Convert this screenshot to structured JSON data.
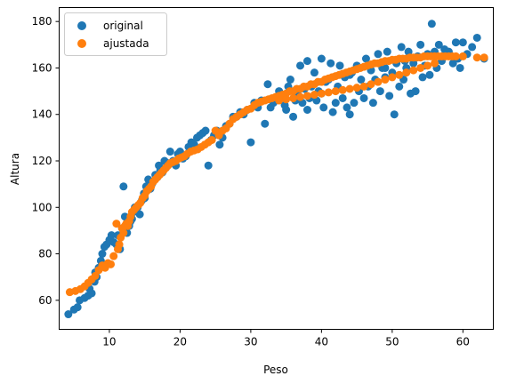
{
  "chart_data": {
    "type": "scatter",
    "title": "",
    "xlabel": "Peso",
    "ylabel": "Altura",
    "xlim": [
      2.9,
      64.3
    ],
    "ylim": [
      47.5,
      186
    ],
    "xticks": [
      10,
      20,
      30,
      40,
      50,
      60
    ],
    "yticks": [
      60,
      80,
      100,
      120,
      140,
      160,
      180
    ],
    "grid": false,
    "legend_position": "upper-left",
    "series": [
      {
        "name": "original",
        "color": "#1f77b4",
        "points": [
          [
            4.2,
            54
          ],
          [
            5,
            56
          ],
          [
            5.5,
            57
          ],
          [
            5.8,
            60
          ],
          [
            6.5,
            61
          ],
          [
            7,
            62
          ],
          [
            7.2,
            65
          ],
          [
            7.5,
            63
          ],
          [
            7.9,
            68
          ],
          [
            8,
            72
          ],
          [
            8.2,
            70
          ],
          [
            8.5,
            74
          ],
          [
            8.8,
            77
          ],
          [
            9,
            80
          ],
          [
            9.3,
            83
          ],
          [
            9.6,
            84
          ],
          [
            10,
            86
          ],
          [
            10.3,
            88
          ],
          [
            10.6,
            85
          ],
          [
            11,
            84
          ],
          [
            11.2,
            88
          ],
          [
            11.5,
            82
          ],
          [
            11.8,
            91
          ],
          [
            12,
            109
          ],
          [
            12.2,
            96
          ],
          [
            12.5,
            89
          ],
          [
            12.8,
            92
          ],
          [
            13,
            94
          ],
          [
            13.2,
            95
          ],
          [
            13.4,
            98
          ],
          [
            13.6,
            100
          ],
          [
            14,
            100
          ],
          [
            14.3,
            97
          ],
          [
            14.6,
            103
          ],
          [
            14.9,
            106
          ],
          [
            15,
            104
          ],
          [
            15.2,
            109
          ],
          [
            15.5,
            112
          ],
          [
            15.8,
            108
          ],
          [
            16,
            110
          ],
          [
            16.2,
            111
          ],
          [
            16.5,
            114
          ],
          [
            16.8,
            113
          ],
          [
            17,
            118
          ],
          [
            17.2,
            116
          ],
          [
            17.5,
            115
          ],
          [
            17.8,
            120
          ],
          [
            18,
            117
          ],
          [
            18.3,
            119
          ],
          [
            18.6,
            124
          ],
          [
            19,
            120
          ],
          [
            19.4,
            118
          ],
          [
            19.7,
            123
          ],
          [
            20,
            124
          ],
          [
            20.4,
            121
          ],
          [
            20.8,
            122
          ],
          [
            21.2,
            126
          ],
          [
            21.6,
            128
          ],
          [
            22,
            127
          ],
          [
            22.4,
            130
          ],
          [
            22.8,
            131
          ],
          [
            23.2,
            132
          ],
          [
            23.6,
            133
          ],
          [
            24,
            118
          ],
          [
            24.4,
            129
          ],
          [
            24.8,
            131
          ],
          [
            25.2,
            133
          ],
          [
            25.6,
            127
          ],
          [
            26,
            130
          ],
          [
            26.5,
            135
          ],
          [
            27,
            136
          ],
          [
            27.5,
            139
          ],
          [
            28,
            139
          ],
          [
            28.5,
            141
          ],
          [
            29,
            140
          ],
          [
            29.5,
            142
          ],
          [
            30,
            128
          ],
          [
            30.5,
            145
          ],
          [
            31,
            143
          ],
          [
            31.5,
            146
          ],
          [
            32,
            136
          ],
          [
            32.4,
            153
          ],
          [
            32.8,
            143
          ],
          [
            33.2,
            145
          ],
          [
            33.6,
            147
          ],
          [
            34,
            150
          ],
          [
            34.4,
            148
          ],
          [
            34.8,
            144
          ],
          [
            35,
            142
          ],
          [
            35.3,
            152
          ],
          [
            35.6,
            155
          ],
          [
            36,
            139
          ],
          [
            36.3,
            146
          ],
          [
            36.6,
            149
          ],
          [
            37,
            161
          ],
          [
            37.3,
            145
          ],
          [
            37.6,
            151
          ],
          [
            38,
            142
          ],
          [
            38.3,
            147
          ],
          [
            38.6,
            152
          ],
          [
            39,
            158
          ],
          [
            39.3,
            146
          ],
          [
            39.6,
            150
          ],
          [
            40,
            149
          ],
          [
            40.3,
            143
          ],
          [
            40.6,
            154
          ],
          [
            41,
            155
          ],
          [
            41.3,
            162
          ],
          [
            41.6,
            141
          ],
          [
            42,
            145
          ],
          [
            42.3,
            152
          ],
          [
            42.6,
            161
          ],
          [
            43,
            147
          ],
          [
            43.3,
            156
          ],
          [
            43.6,
            143
          ],
          [
            44,
            140
          ],
          [
            44.3,
            158
          ],
          [
            44.6,
            145
          ],
          [
            45,
            161
          ],
          [
            45.3,
            150
          ],
          [
            45.6,
            155
          ],
          [
            46,
            147
          ],
          [
            46.3,
            164
          ],
          [
            46.6,
            152
          ],
          [
            47,
            159
          ],
          [
            47.3,
            145
          ],
          [
            47.6,
            155
          ],
          [
            48,
            166
          ],
          [
            48.3,
            150
          ],
          [
            48.6,
            160
          ],
          [
            49,
            156
          ],
          [
            49.3,
            167
          ],
          [
            49.6,
            148
          ],
          [
            50,
            158
          ],
          [
            50.3,
            140
          ],
          [
            50.6,
            162
          ],
          [
            51,
            152
          ],
          [
            51.3,
            169
          ],
          [
            51.6,
            155
          ],
          [
            52,
            160
          ],
          [
            52.3,
            167
          ],
          [
            52.6,
            149
          ],
          [
            53,
            162
          ],
          [
            53.3,
            150
          ],
          [
            53.6,
            165
          ],
          [
            54,
            170
          ],
          [
            54.3,
            156
          ],
          [
            54.6,
            161
          ],
          [
            55,
            166
          ],
          [
            55.3,
            157
          ],
          [
            55.6,
            179
          ],
          [
            56,
            167
          ],
          [
            56.3,
            160
          ],
          [
            56.6,
            170
          ],
          [
            57,
            163
          ],
          [
            57.4,
            168
          ],
          [
            58,
            167
          ],
          [
            58.6,
            162
          ],
          [
            59,
            171
          ],
          [
            59.3,
            164
          ],
          [
            59.6,
            160
          ],
          [
            60,
            171
          ],
          [
            60.6,
            166
          ],
          [
            61.3,
            169
          ],
          [
            62,
            173
          ],
          [
            63,
            164
          ],
          [
            38,
            163
          ],
          [
            40,
            164
          ],
          [
            44,
            157
          ],
          [
            49,
            160
          ],
          [
            51.8,
            163
          ]
        ]
      },
      {
        "name": "ajustada",
        "color": "#ff7f0e",
        "points": [
          [
            4.4,
            63.5
          ],
          [
            5.2,
            64
          ],
          [
            5.9,
            64.8
          ],
          [
            6.5,
            66
          ],
          [
            7,
            67.5
          ],
          [
            7.5,
            69
          ],
          [
            8,
            70.5
          ],
          [
            8.5,
            73
          ],
          [
            9,
            75
          ],
          [
            9.4,
            74
          ],
          [
            9.8,
            76
          ],
          [
            10.2,
            75.5
          ],
          [
            10.6,
            79
          ],
          [
            11,
            93
          ],
          [
            11.2,
            82
          ],
          [
            11.4,
            84
          ],
          [
            11.6,
            87
          ],
          [
            11.8,
            91
          ],
          [
            12,
            89
          ],
          [
            12.2,
            92
          ],
          [
            12.4,
            93
          ],
          [
            12.6,
            92
          ],
          [
            12.8,
            94
          ],
          [
            13,
            96
          ],
          [
            13.2,
            98
          ],
          [
            13.5,
            99
          ],
          [
            13.8,
            100
          ],
          [
            14.1,
            101
          ],
          [
            14.4,
            102
          ],
          [
            14.7,
            104
          ],
          [
            15,
            105
          ],
          [
            15.3,
            107
          ],
          [
            15.6,
            108
          ],
          [
            15.9,
            109
          ],
          [
            16.2,
            111
          ],
          [
            16.5,
            112
          ],
          [
            16.8,
            113
          ],
          [
            17.1,
            114
          ],
          [
            17.4,
            115
          ],
          [
            17.7,
            116
          ],
          [
            18,
            117
          ],
          [
            18.3,
            118
          ],
          [
            18.6,
            119
          ],
          [
            19,
            119.5
          ],
          [
            19.4,
            120
          ],
          [
            19.8,
            121
          ],
          [
            20.2,
            121.5
          ],
          [
            20.6,
            122
          ],
          [
            21,
            123
          ],
          [
            21.5,
            124
          ],
          [
            22,
            124.5
          ],
          [
            22.5,
            125
          ],
          [
            23,
            126
          ],
          [
            23.5,
            127
          ],
          [
            24,
            128
          ],
          [
            24.5,
            129
          ],
          [
            25,
            133
          ],
          [
            25.5,
            131
          ],
          [
            26,
            133
          ],
          [
            26.5,
            134
          ],
          [
            27,
            136
          ],
          [
            27.5,
            138
          ],
          [
            28,
            139
          ],
          [
            28.5,
            140
          ],
          [
            29,
            141
          ],
          [
            29.5,
            142
          ],
          [
            30,
            142.5
          ],
          [
            30.5,
            144
          ],
          [
            31,
            145
          ],
          [
            31.5,
            145.5
          ],
          [
            32,
            146
          ],
          [
            32.5,
            146.5
          ],
          [
            33,
            147
          ],
          [
            33.5,
            147.5
          ],
          [
            34,
            148
          ],
          [
            34.5,
            148.5
          ],
          [
            35,
            149
          ],
          [
            35.5,
            150
          ],
          [
            36,
            150
          ],
          [
            36.5,
            151
          ],
          [
            37,
            151
          ],
          [
            37.5,
            152
          ],
          [
            38,
            152
          ],
          [
            38.5,
            153
          ],
          [
            39,
            153
          ],
          [
            39.5,
            154
          ],
          [
            40,
            154
          ],
          [
            40.5,
            155
          ],
          [
            41,
            155.5
          ],
          [
            41.5,
            156
          ],
          [
            42,
            156.5
          ],
          [
            42.5,
            157
          ],
          [
            43,
            157.5
          ],
          [
            43.5,
            158
          ],
          [
            44,
            158.5
          ],
          [
            44.5,
            159
          ],
          [
            45,
            159.5
          ],
          [
            45.5,
            160
          ],
          [
            46,
            160.5
          ],
          [
            46.5,
            161
          ],
          [
            47,
            161.5
          ],
          [
            47.5,
            162
          ],
          [
            48,
            162
          ],
          [
            48.5,
            162.5
          ],
          [
            49,
            163
          ],
          [
            49.5,
            163
          ],
          [
            50,
            163.5
          ],
          [
            50.5,
            163.5
          ],
          [
            51,
            164
          ],
          [
            51.5,
            164
          ],
          [
            52,
            164
          ],
          [
            52.5,
            164.5
          ],
          [
            53,
            164.5
          ],
          [
            53.5,
            164.5
          ],
          [
            54,
            164.5
          ],
          [
            54.5,
            165
          ],
          [
            55,
            165
          ],
          [
            55.5,
            165
          ],
          [
            56,
            165
          ],
          [
            56.5,
            165
          ],
          [
            57,
            165
          ],
          [
            57.5,
            165
          ],
          [
            58,
            165
          ],
          [
            58.5,
            165
          ],
          [
            59,
            165
          ],
          [
            60,
            165
          ],
          [
            62,
            164.5
          ],
          [
            63,
            164.5
          ],
          [
            34,
            146
          ],
          [
            35,
            146.5
          ],
          [
            36,
            147
          ],
          [
            37,
            147.5
          ],
          [
            38,
            148
          ],
          [
            39,
            148.5
          ],
          [
            40,
            149
          ],
          [
            41,
            149.5
          ],
          [
            42,
            150
          ],
          [
            43,
            150.5
          ],
          [
            44,
            151
          ],
          [
            45,
            151.5
          ],
          [
            46,
            152
          ],
          [
            47,
            153
          ],
          [
            48,
            154
          ],
          [
            49,
            155
          ],
          [
            50,
            156
          ],
          [
            51,
            157
          ],
          [
            52,
            158
          ],
          [
            53,
            159
          ],
          [
            54,
            160
          ],
          [
            55,
            161
          ],
          [
            56,
            162
          ]
        ]
      }
    ]
  }
}
